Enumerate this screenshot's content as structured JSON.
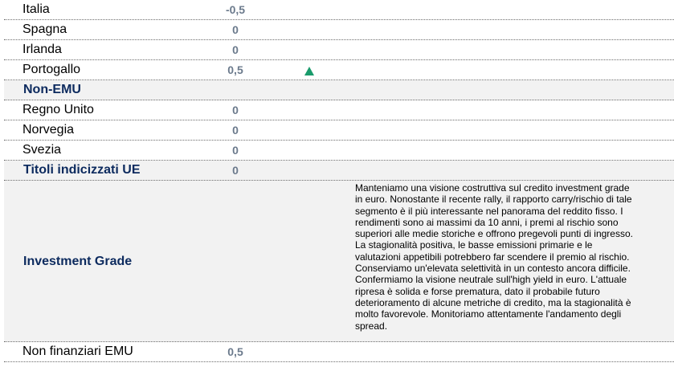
{
  "rows": [
    {
      "name": "Italia",
      "value": "-0,5",
      "header": false
    },
    {
      "name": "Spagna",
      "value": "0",
      "header": false
    },
    {
      "name": "Irlanda",
      "value": "0",
      "header": false
    },
    {
      "name": "Portogallo",
      "value": "0,5",
      "header": false,
      "indicator": "up-triangle-icon",
      "indicator_color": "#1a9b6c"
    },
    {
      "name": "Non-EMU",
      "value": "",
      "header": true
    },
    {
      "name": "Regno Unito",
      "value": "0",
      "header": false
    },
    {
      "name": "Norvegia",
      "value": "0",
      "header": false
    },
    {
      "name": "Svezia",
      "value": "0",
      "header": false
    },
    {
      "name": "Titoli indicizzati UE",
      "value": "0",
      "header": true
    }
  ],
  "investment_grade": {
    "name": "Investment Grade",
    "description_lines": [
      "Manteniamo una visione costruttiva sul credito investment grade",
      "in euro. Nonostante il recente rally, il rapporto carry/rischio di tale",
      "segmento è il più interessante nel panorama del reddito fisso. I",
      "rendimenti sono ai massimi da 10 anni, i premi al rischio sono",
      "superiori alle medie storiche e offrono pregevoli punti di ingresso.",
      "La stagionalità positiva, le basse emissioni primarie e le",
      "valutazioni appetibili potrebbero far scendere il premio al rischio.",
      "Conserviamo un'elevata selettività in un contesto ancora difficile.",
      "Confermiamo la visione neutrale sull'high yield in euro. L'attuale",
      "ripresa è solida e forse prematura, dato il probabile futuro",
      "deterioramento di alcune metriche di credito, ma la stagionalità è",
      "molto favorevole. Monitoriamo attentamente l'andamento degli",
      "spread."
    ]
  },
  "last_row": {
    "name": "Non finanziari EMU",
    "value": "0,5"
  },
  "colors": {
    "header_text": "#0c2a5e",
    "value_text": "#6b7a8c",
    "header_bg": "#f2f2f2",
    "up": "#1a9b6c"
  }
}
